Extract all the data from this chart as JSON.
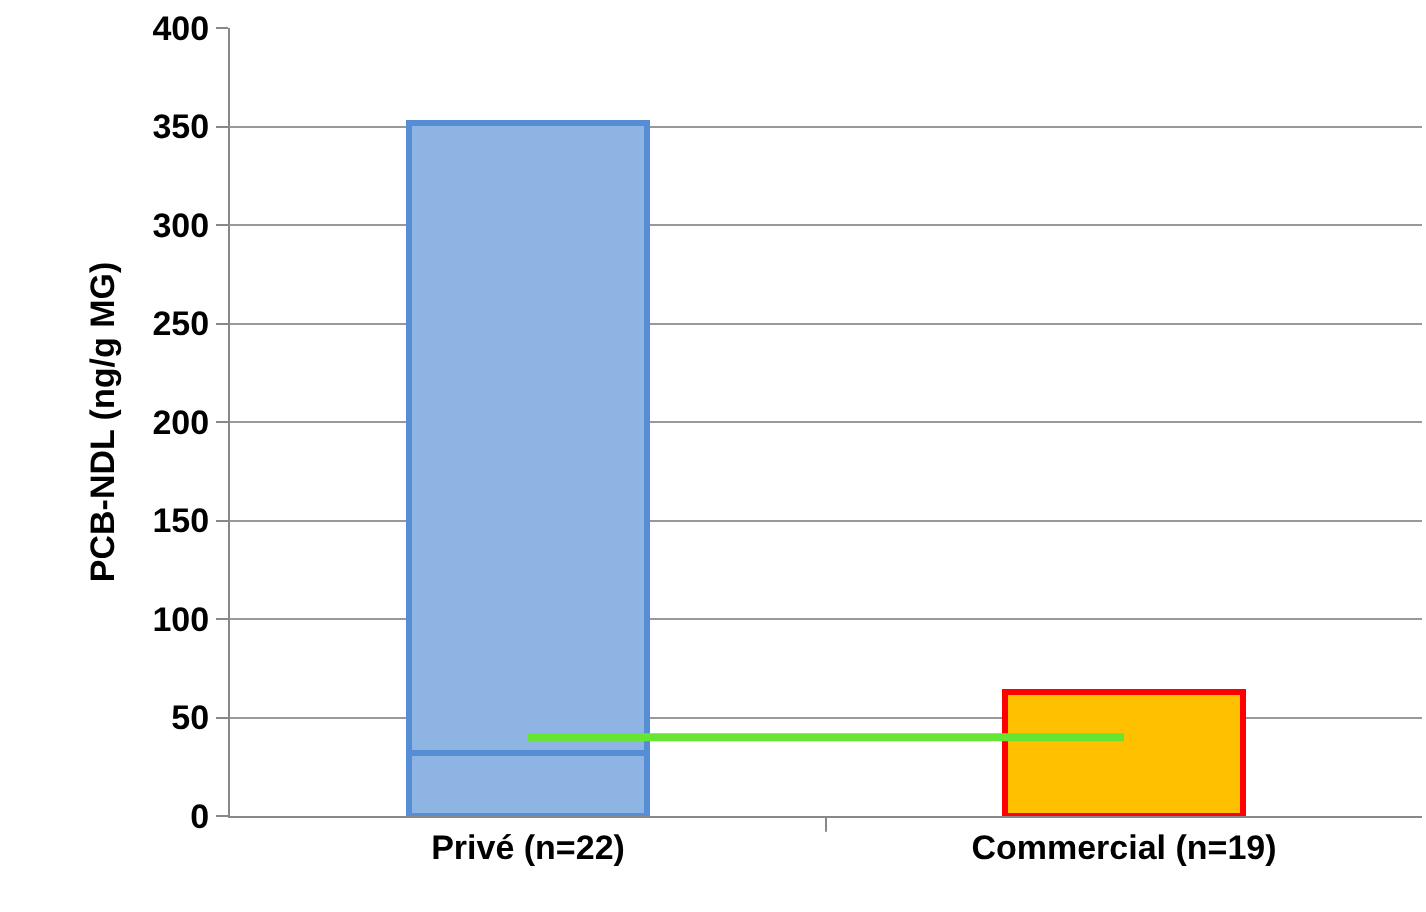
{
  "chart_data": {
    "type": "bar",
    "stacked": true,
    "ylabel": "PCB-NDL (ng/g MG)",
    "categories": [
      "Privé (n=22)",
      "Commercial (n=19)"
    ],
    "series": [
      {
        "colors": [
          "#8eb4e3",
          "#ffc000"
        ],
        "values": [
          32,
          63
        ]
      },
      {
        "colors": [
          "#8eb4e3",
          "#ffc000"
        ],
        "values": [
          320,
          null
        ]
      },
      {
        "type": "line",
        "color": "#66e633",
        "values": [
          40,
          40
        ],
        "marker": "none"
      }
    ],
    "ylim": [
      0,
      400
    ],
    "yticks": [
      0,
      50,
      100,
      150,
      200,
      250,
      300,
      350,
      400
    ],
    "grid": "y"
  }
}
